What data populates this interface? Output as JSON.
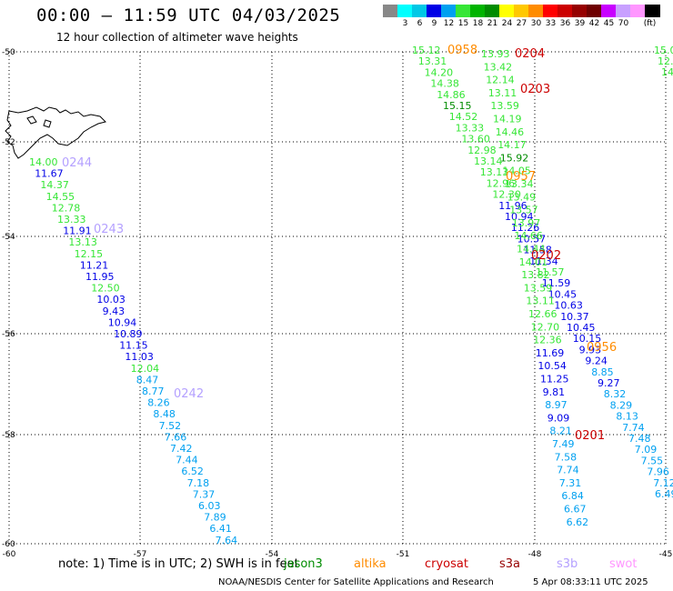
{
  "header": {
    "title": "00:00 – 11:59 UTC 04/03/2025",
    "subtitle": "12 hour collection of altimeter wave heights"
  },
  "scale": {
    "unit": "(ft)",
    "colors": [
      "#888888",
      "#00ffff",
      "#00c8e6",
      "#0000e6",
      "#00a0f0",
      "#36e636",
      "#00b400",
      "#008c00",
      "#ffff00",
      "#ffc800",
      "#ff8c00",
      "#ff0000",
      "#cc0000",
      "#960000",
      "#6e0000",
      "#c800ff",
      "#c8a0ff",
      "#ff96ff",
      "#000000"
    ],
    "labels": [
      "3",
      "6",
      "9",
      "12",
      "15",
      "18",
      "21",
      "24",
      "27",
      "30",
      "33",
      "36",
      "39",
      "42",
      "45",
      "70",
      "(ft)"
    ]
  },
  "axes": {
    "lat_labels": [
      "-50",
      "-52",
      "-54",
      "-56",
      "-58",
      "-60"
    ],
    "lon_labels": [
      "-60",
      "-57",
      "-54",
      "-51",
      "-48",
      "-45"
    ]
  },
  "tracks": [
    {
      "name": "altika-0956",
      "points": [
        {
          "t": "15.12",
          "c": "#36e636"
        },
        {
          "t": "13.31",
          "c": "#36e636"
        },
        {
          "t": "14.20",
          "c": "#36e636"
        },
        {
          "t": "14.38",
          "c": "#36e636"
        },
        {
          "t": "14.86",
          "c": "#36e636"
        },
        {
          "t": "15.15",
          "c": "#008c00"
        },
        {
          "t": "14.52",
          "c": "#36e636"
        },
        {
          "t": "13.33",
          "c": "#36e636"
        },
        {
          "t": "13.60",
          "c": "#36e636"
        },
        {
          "t": "12.98",
          "c": "#36e636"
        },
        {
          "t": "13.14",
          "c": "#36e636"
        },
        {
          "t": "13.13",
          "c": "#36e636"
        },
        {
          "t": "12.96",
          "c": "#36e636"
        },
        {
          "t": "12.30",
          "c": "#36e636"
        },
        {
          "t": "11.96",
          "c": "#0000e6"
        },
        {
          "t": "10.94",
          "c": "#0000e6"
        },
        {
          "t": "11.26",
          "c": "#0000e6"
        },
        {
          "t": "10.57",
          "c": "#0000e6"
        },
        {
          "t": "11.58",
          "c": "#0000e6"
        },
        {
          "t": "11.34",
          "c": "#0000e6"
        },
        {
          "t": "11.57",
          "c": "#36e636"
        },
        {
          "t": "11.59",
          "c": "#0000e6"
        },
        {
          "t": "10.45",
          "c": "#0000e6"
        },
        {
          "t": "10.63",
          "c": "#0000e6"
        },
        {
          "t": "10.37",
          "c": "#0000e6"
        },
        {
          "t": "10.45",
          "c": "#0000e6"
        },
        {
          "t": "10.15",
          "c": "#0000e6"
        },
        {
          "t": "9.93",
          "c": "#0000e6"
        },
        {
          "t": "9.24",
          "c": "#0000e6"
        },
        {
          "t": "8.85",
          "c": "#00a0f0"
        },
        {
          "t": "9.27",
          "c": "#0000e6"
        },
        {
          "t": "8.32",
          "c": "#00a0f0"
        },
        {
          "t": "8.29",
          "c": "#00a0f0"
        },
        {
          "t": "8.13",
          "c": "#00a0f0"
        },
        {
          "t": "7.74",
          "c": "#00a0f0"
        },
        {
          "t": "7.48",
          "c": "#00a0f0"
        },
        {
          "t": "7.09",
          "c": "#00a0f0"
        },
        {
          "t": "7.55",
          "c": "#00a0f0"
        },
        {
          "t": "7.96",
          "c": "#00a0f0"
        },
        {
          "t": "7.12",
          "c": "#00a0f0"
        },
        {
          "t": "6.49",
          "c": "#00a0f0"
        }
      ]
    },
    {
      "name": "cryosat-0201",
      "points": [
        {
          "t": "13.93",
          "c": "#36e636"
        },
        {
          "t": "13.42",
          "c": "#36e636"
        },
        {
          "t": "12.14",
          "c": "#36e636"
        },
        {
          "t": "13.11",
          "c": "#36e636"
        },
        {
          "t": "13.59",
          "c": "#36e636"
        },
        {
          "t": "14.19",
          "c": "#36e636"
        },
        {
          "t": "14.46",
          "c": "#36e636"
        },
        {
          "t": "14.17",
          "c": "#36e636"
        },
        {
          "t": "15.92",
          "c": "#008c00"
        },
        {
          "t": "14.05",
          "c": "#36e636"
        },
        {
          "t": "13.34",
          "c": "#36e636"
        },
        {
          "t": "13.49",
          "c": "#36e636"
        },
        {
          "t": "13.57",
          "c": "#36e636"
        },
        {
          "t": "13.97",
          "c": "#36e636"
        },
        {
          "t": "14.66",
          "c": "#36e636"
        },
        {
          "t": "14.44",
          "c": "#36e636"
        },
        {
          "t": "14.01",
          "c": "#36e636"
        },
        {
          "t": "13.82",
          "c": "#36e636"
        },
        {
          "t": "13.59",
          "c": "#36e636"
        },
        {
          "t": "13.11",
          "c": "#36e636"
        },
        {
          "t": "12.66",
          "c": "#36e636"
        },
        {
          "t": "12.70",
          "c": "#36e636"
        },
        {
          "t": "12.36",
          "c": "#36e636"
        },
        {
          "t": "11.69",
          "c": "#0000e6"
        },
        {
          "t": "10.54",
          "c": "#0000e6"
        },
        {
          "t": "11.25",
          "c": "#0000e6"
        },
        {
          "t": "9.81",
          "c": "#0000e6"
        },
        {
          "t": "8.97",
          "c": "#00a0f0"
        },
        {
          "t": "9.09",
          "c": "#0000e6"
        },
        {
          "t": "8.21",
          "c": "#00a0f0"
        },
        {
          "t": "7.49",
          "c": "#00a0f0"
        },
        {
          "t": "7.58",
          "c": "#00a0f0"
        },
        {
          "t": "7.74",
          "c": "#00a0f0"
        },
        {
          "t": "7.31",
          "c": "#00a0f0"
        },
        {
          "t": "6.84",
          "c": "#00a0f0"
        },
        {
          "t": "6.67",
          "c": "#00a0f0"
        },
        {
          "t": "6.62",
          "c": "#00a0f0"
        }
      ]
    },
    {
      "name": "s3b-0242",
      "points": [
        {
          "t": "14.00",
          "c": "#36e636"
        },
        {
          "t": "11.67",
          "c": "#0000e6"
        },
        {
          "t": "14.37",
          "c": "#36e636"
        },
        {
          "t": "14.55",
          "c": "#36e636"
        },
        {
          "t": "12.78",
          "c": "#36e636"
        },
        {
          "t": "13.33",
          "c": "#36e636"
        },
        {
          "t": "11.91",
          "c": "#0000e6"
        },
        {
          "t": "13.13",
          "c": "#36e636"
        },
        {
          "t": "12.15",
          "c": "#36e636"
        },
        {
          "t": "11.21",
          "c": "#0000e6"
        },
        {
          "t": "11.95",
          "c": "#0000e6"
        },
        {
          "t": "12.50",
          "c": "#36e636"
        },
        {
          "t": "10.03",
          "c": "#0000e6"
        },
        {
          "t": "9.43",
          "c": "#0000e6"
        },
        {
          "t": "10.94",
          "c": "#0000e6"
        },
        {
          "t": "10.89",
          "c": "#0000e6"
        },
        {
          "t": "11.15",
          "c": "#0000e6"
        },
        {
          "t": "11.03",
          "c": "#0000e6"
        },
        {
          "t": "12.04",
          "c": "#36e636"
        },
        {
          "t": "8.47",
          "c": "#00a0f0"
        },
        {
          "t": "8.77",
          "c": "#00a0f0"
        },
        {
          "t": "8.26",
          "c": "#00a0f0"
        },
        {
          "t": "8.48",
          "c": "#00a0f0"
        },
        {
          "t": "7.52",
          "c": "#00a0f0"
        },
        {
          "t": "7.66",
          "c": "#00a0f0"
        },
        {
          "t": "7.42",
          "c": "#00a0f0"
        },
        {
          "t": "7.44",
          "c": "#00a0f0"
        },
        {
          "t": "6.52",
          "c": "#00a0f0"
        },
        {
          "t": "7.18",
          "c": "#00a0f0"
        },
        {
          "t": "7.37",
          "c": "#00a0f0"
        },
        {
          "t": "6.03",
          "c": "#00a0f0"
        },
        {
          "t": "7.89",
          "c": "#00a0f0"
        },
        {
          "t": "6.41",
          "c": "#00a0f0"
        },
        {
          "t": "7.64",
          "c": "#00a0f0"
        }
      ]
    },
    {
      "name": "right-edge",
      "points": [
        {
          "t": "15.0",
          "c": "#36e636"
        },
        {
          "t": "12.",
          "c": "#36e636"
        },
        {
          "t": "14",
          "c": "#36e636"
        }
      ]
    }
  ],
  "time_labels": [
    {
      "t": "0958",
      "c": "#ff8c00"
    },
    {
      "t": "0204",
      "c": "#cc0000"
    },
    {
      "t": "0203",
      "c": "#cc0000"
    },
    {
      "t": "0957",
      "c": "#ff8c00"
    },
    {
      "t": "0202",
      "c": "#cc0000"
    },
    {
      "t": "0956",
      "c": "#ff8c00"
    },
    {
      "t": "0201",
      "c": "#cc0000"
    },
    {
      "t": "0244",
      "c": "#b4a0ff"
    },
    {
      "t": "0243",
      "c": "#b4a0ff"
    },
    {
      "t": "0242",
      "c": "#b4a0ff"
    }
  ],
  "note": "note:  1) Time is in UTC; 2) SWH is in feet",
  "legend": [
    {
      "t": "jason3",
      "c": "#008c00"
    },
    {
      "t": "altika",
      "c": "#ff8c00"
    },
    {
      "t": "cryosat",
      "c": "#cc0000"
    },
    {
      "t": "s3a",
      "c": "#960000"
    },
    {
      "t": "s3b",
      "c": "#b4a0ff"
    },
    {
      "t": "swot",
      "c": "#ff96ff"
    }
  ],
  "footer": {
    "credit": "NOAA/NESDIS Center for Satellite Applications and Research",
    "timestamp": "5 Apr 08:33:11 UTC 2025"
  }
}
